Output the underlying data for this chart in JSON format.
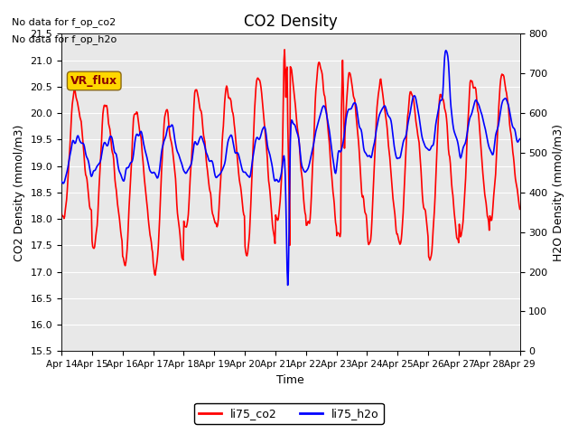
{
  "title": "CO2 Density",
  "xlabel": "Time",
  "ylabel_left": "CO2 Density (mmol/m3)",
  "ylabel_right": "H2O Density (mmol/m3)",
  "ylim_left": [
    15.5,
    21.5
  ],
  "ylim_right": [
    0,
    800
  ],
  "yticks_left": [
    15.5,
    16.0,
    16.5,
    17.0,
    17.5,
    18.0,
    18.5,
    19.0,
    19.5,
    20.0,
    20.5,
    21.0,
    21.5
  ],
  "yticks_right": [
    0,
    100,
    200,
    300,
    400,
    500,
    600,
    700,
    800
  ],
  "xtick_labels": [
    "Apr 14",
    "Apr 15",
    "Apr 16",
    "Apr 17",
    "Apr 18",
    "Apr 19",
    "Apr 20",
    "Apr 21",
    "Apr 22",
    "Apr 23",
    "Apr 24",
    "Apr 25",
    "Apr 26",
    "Apr 27",
    "Apr 28",
    "Apr 29"
  ],
  "annotation1": "No data for f_op_co2",
  "annotation2": "No data for f_op_h2o",
  "vr_flux_label": "VR_flux",
  "legend_co2": "li75_co2",
  "legend_h2o": "li75_h2o",
  "color_co2": "#FF0000",
  "color_h2o": "#0000FF",
  "bg_color": "#E8E8E8",
  "fig_bg": "#FFFFFF",
  "linewidth_co2": 1.2,
  "linewidth_h2o": 1.2
}
